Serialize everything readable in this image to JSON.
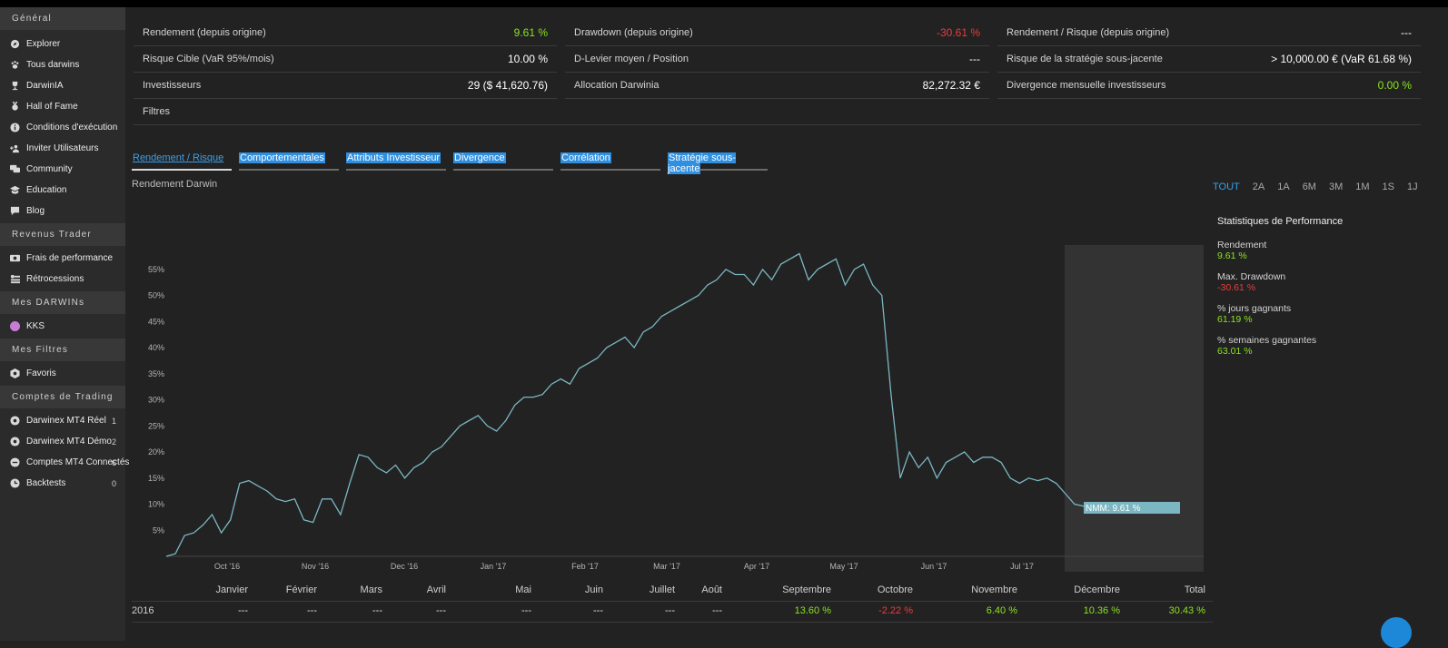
{
  "sidebar": {
    "sections": [
      {
        "title": "Général",
        "items": [
          {
            "label": "Explorer",
            "icon": "compass-icon"
          },
          {
            "label": "Tous darwins",
            "icon": "paw-icon"
          },
          {
            "label": "DarwinIA",
            "icon": "trophy-icon"
          },
          {
            "label": "Hall of Fame",
            "icon": "medal-icon"
          },
          {
            "label": "Conditions d'exécution",
            "icon": "info-icon"
          },
          {
            "label": "Inviter Utilisateurs",
            "icon": "add-users-icon"
          },
          {
            "label": "Community",
            "icon": "chat-icon"
          },
          {
            "label": "Education",
            "icon": "graduation-cap-icon"
          },
          {
            "label": "Blog",
            "icon": "comment-icon"
          }
        ]
      },
      {
        "title": "Revenus Trader",
        "items": [
          {
            "label": "Frais de performance",
            "icon": "money-icon"
          },
          {
            "label": "Rétrocessions",
            "icon": "share-icon"
          }
        ]
      },
      {
        "title": "Mes DARWINs",
        "items": [
          {
            "label": "KKS",
            "icon": "purple-dot-icon"
          }
        ]
      },
      {
        "title": "Mes Filtres",
        "items": [
          {
            "label": "Favoris",
            "icon": "filter-icon"
          }
        ]
      },
      {
        "title": "Comptes de Trading",
        "items": [
          {
            "label": "Darwinex MT4 Réel",
            "icon": "account-icon",
            "count": "1"
          },
          {
            "label": "Darwinex MT4 Démo",
            "icon": "account-icon",
            "count": "2"
          },
          {
            "label": "Comptes MT4 Connectés",
            "icon": "link-icon",
            "count": "6"
          },
          {
            "label": "Backtests",
            "icon": "clock-icon",
            "count": "0"
          }
        ]
      }
    ]
  },
  "kpis": {
    "rendement": {
      "label": "Rendement (depuis origine)",
      "value": "9.61 %"
    },
    "drawdown": {
      "label": "Drawdown (depuis origine)",
      "value": "-30.61 %"
    },
    "rr": {
      "label": "Rendement / Risque (depuis origine)",
      "value": "---"
    },
    "risque_cible": {
      "label": "Risque Cible (VaR 95%/mois)",
      "value": "10.00 %"
    },
    "d_levier": {
      "label": "D-Levier moyen / Position",
      "value": "---"
    },
    "risque_strat": {
      "label": "Risque de la stratégie sous-jacente",
      "value": "> 10,000.00 € (VaR 61.68 %)"
    },
    "investisseurs": {
      "label": "Investisseurs",
      "value": "29 ($ 41,620.76)"
    },
    "allocation": {
      "label": "Allocation Darwinia",
      "value": "82,272.32 €"
    },
    "divergence": {
      "label": "Divergence mensuelle investisseurs",
      "value": "0.00 %"
    },
    "filtres": {
      "label": "Filtres"
    }
  },
  "tabs": [
    "Rendement / Risque",
    "Comportementales",
    "Attributs Investisseur",
    "Divergence",
    "Corrélation",
    "Stratégie sous-jacente"
  ],
  "chart_title": "Rendement Darwin",
  "ranges": [
    "TOUT",
    "2A",
    "1A",
    "6M",
    "3M",
    "1M",
    "1S",
    "1J"
  ],
  "stats": {
    "title": "Statistiques de Performance",
    "items": [
      {
        "label": "Rendement",
        "value": "9.61 %",
        "color": "green"
      },
      {
        "label": "Max. Drawdown",
        "value": "-30.61 %",
        "color": "red"
      },
      {
        "label": "% jours gagnants",
        "value": "61.19 %",
        "color": "green"
      },
      {
        "label": "% semaines gagnantes",
        "value": "63.01 %",
        "color": "green"
      }
    ]
  },
  "chart_data": {
    "type": "line",
    "title": "Rendement Darwin",
    "ylabel": "",
    "yticks": [
      "5%",
      "10%",
      "15%",
      "20%",
      "25%",
      "30%",
      "35%",
      "40%",
      "45%",
      "50%",
      "55%"
    ],
    "xticks": [
      "Oct '16",
      "Nov '16",
      "Dec '16",
      "Jan '17",
      "Feb '17",
      "Mar '17",
      "Apr '17",
      "May '17",
      "Jun '17",
      "Jul '17"
    ],
    "ylim": [
      0,
      60
    ],
    "annotation": "NMM: 9.61 %",
    "series": [
      {
        "name": "",
        "values": [
          0,
          0.5,
          4,
          4.5,
          6,
          8,
          4.5,
          7,
          14,
          14.5,
          13.5,
          12.5,
          11,
          10.5,
          11,
          7,
          6.5,
          11,
          11,
          8,
          14,
          19.5,
          19,
          17,
          16,
          17.5,
          15,
          17,
          18,
          20,
          21,
          23,
          25,
          26,
          27,
          25,
          24,
          26,
          29,
          30.5,
          30.5,
          31,
          33,
          34,
          33,
          36,
          37,
          38,
          40,
          41,
          42,
          40,
          43,
          44,
          46,
          47,
          48,
          49,
          50,
          52,
          53,
          55,
          54,
          54,
          52,
          55,
          53,
          56,
          57,
          58,
          53,
          55,
          56,
          57,
          52,
          55,
          56,
          52,
          50,
          31,
          15,
          20,
          17,
          19,
          15,
          18,
          19,
          20,
          18,
          19,
          19,
          18,
          15,
          14,
          15,
          14.5,
          15,
          14,
          12,
          10,
          9.61
        ]
      }
    ],
    "months_table": {
      "headers": [
        "Janvier",
        "Février",
        "Mars",
        "Avril",
        "Mai",
        "Juin",
        "Juillet",
        "Août",
        "Septembre",
        "Octobre",
        "Novembre",
        "Décembre",
        "Total"
      ],
      "rows": [
        {
          "year": "2016",
          "values": [
            "---",
            "---",
            "---",
            "---",
            "---",
            "---",
            "---",
            "---",
            "13.60 %",
            "-2.22 %",
            "6.40 %",
            "10.36 %",
            "30.43 %"
          ]
        }
      ]
    }
  }
}
